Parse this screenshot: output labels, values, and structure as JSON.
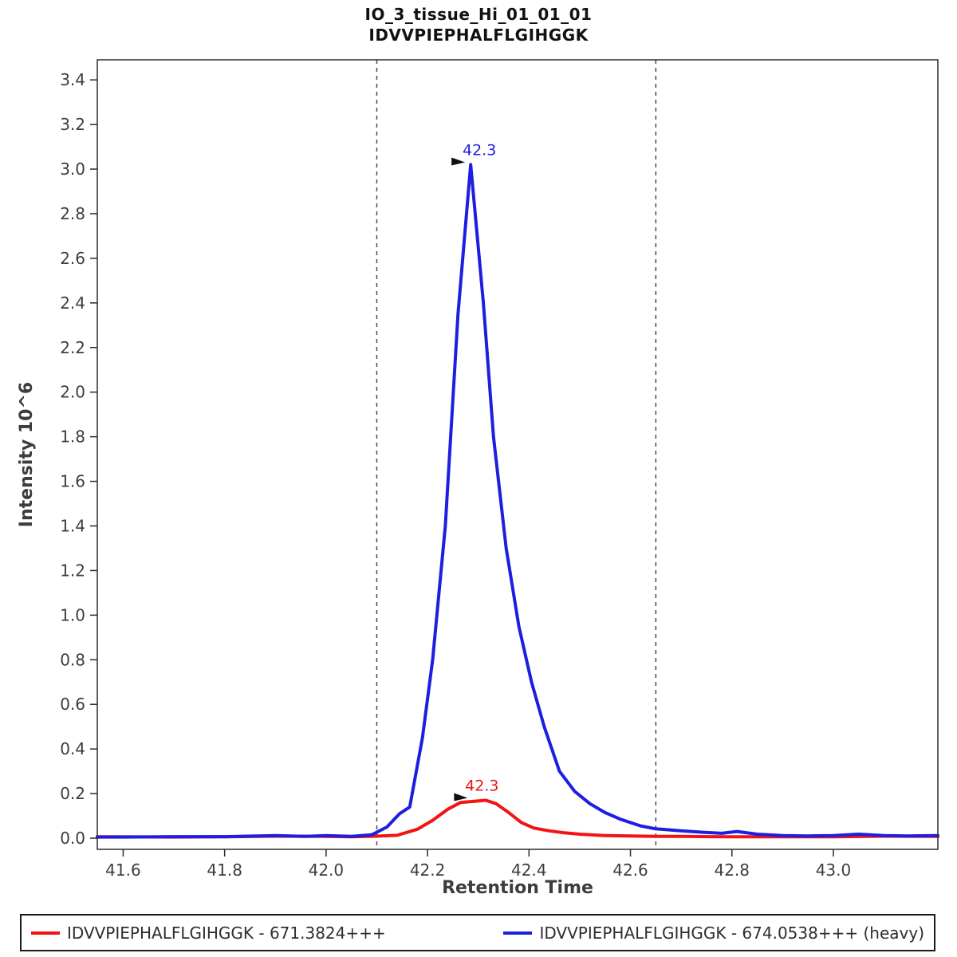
{
  "chart_data": {
    "type": "line",
    "title": "IO_3_tissue_Hi_01_01_01",
    "subtitle": "IDVVPIEPHALFLGIHGGK",
    "xlabel": "Retention Time",
    "ylabel": "Intensity 10^6",
    "xlim": [
      41.549,
      43.206
    ],
    "ylim": [
      -0.05,
      3.49
    ],
    "x_ticks": [
      41.6,
      41.8,
      42.0,
      42.2,
      42.4,
      42.6,
      42.8,
      43.0
    ],
    "y_ticks": [
      0.0,
      0.2,
      0.4,
      0.6,
      0.8,
      1.0,
      1.2,
      1.4,
      1.6,
      1.8,
      2.0,
      2.2,
      2.4,
      2.6,
      2.8,
      3.0,
      3.2,
      3.4
    ],
    "grid": false,
    "legend_position": "bottom",
    "integration_boundaries": [
      42.1,
      42.65
    ],
    "series": [
      {
        "name": "IDVVPIEPHALFLGIHGGK - 671.3824+++",
        "color": "#f01414",
        "x": [
          41.549,
          41.6,
          41.7,
          41.8,
          41.9,
          42.0,
          42.05,
          42.1,
          42.14,
          42.18,
          42.21,
          42.24,
          42.265,
          42.29,
          42.315,
          42.335,
          42.36,
          42.385,
          42.41,
          42.44,
          42.47,
          42.5,
          42.55,
          42.6,
          42.65,
          42.7,
          42.8,
          42.9,
          43.0,
          43.1,
          43.206
        ],
        "y": [
          0.006,
          0.006,
          0.005,
          0.006,
          0.009,
          0.008,
          0.006,
          0.009,
          0.013,
          0.04,
          0.08,
          0.13,
          0.16,
          0.165,
          0.17,
          0.155,
          0.115,
          0.07,
          0.045,
          0.033,
          0.024,
          0.018,
          0.012,
          0.01,
          0.008,
          0.008,
          0.006,
          0.006,
          0.006,
          0.009,
          0.008
        ],
        "peak_label": {
          "text": "42.3",
          "x": 42.29,
          "y": 0.17
        }
      },
      {
        "name": "IDVVPIEPHALFLGIHGGK - 674.0538+++ (heavy)",
        "color": "#1e1ee0",
        "x": [
          41.549,
          41.6,
          41.7,
          41.8,
          41.9,
          41.96,
          42.0,
          42.05,
          42.09,
          42.12,
          42.145,
          42.165,
          42.19,
          42.21,
          42.235,
          42.26,
          42.285,
          42.31,
          42.33,
          42.355,
          42.38,
          42.405,
          42.43,
          42.46,
          42.49,
          42.52,
          42.55,
          42.58,
          42.62,
          42.65,
          42.7,
          42.74,
          42.78,
          42.81,
          42.85,
          42.9,
          42.95,
          43.0,
          43.05,
          43.1,
          43.15,
          43.206
        ],
        "y": [
          0.005,
          0.005,
          0.007,
          0.007,
          0.012,
          0.008,
          0.012,
          0.008,
          0.015,
          0.05,
          0.11,
          0.14,
          0.45,
          0.8,
          1.4,
          2.35,
          3.02,
          2.4,
          1.8,
          1.3,
          0.95,
          0.7,
          0.5,
          0.3,
          0.21,
          0.155,
          0.115,
          0.085,
          0.055,
          0.042,
          0.033,
          0.027,
          0.022,
          0.03,
          0.018,
          0.012,
          0.01,
          0.012,
          0.018,
          0.012,
          0.01,
          0.012
        ],
        "peak_label": {
          "text": "42.3",
          "x": 42.285,
          "y": 3.02
        }
      }
    ]
  }
}
